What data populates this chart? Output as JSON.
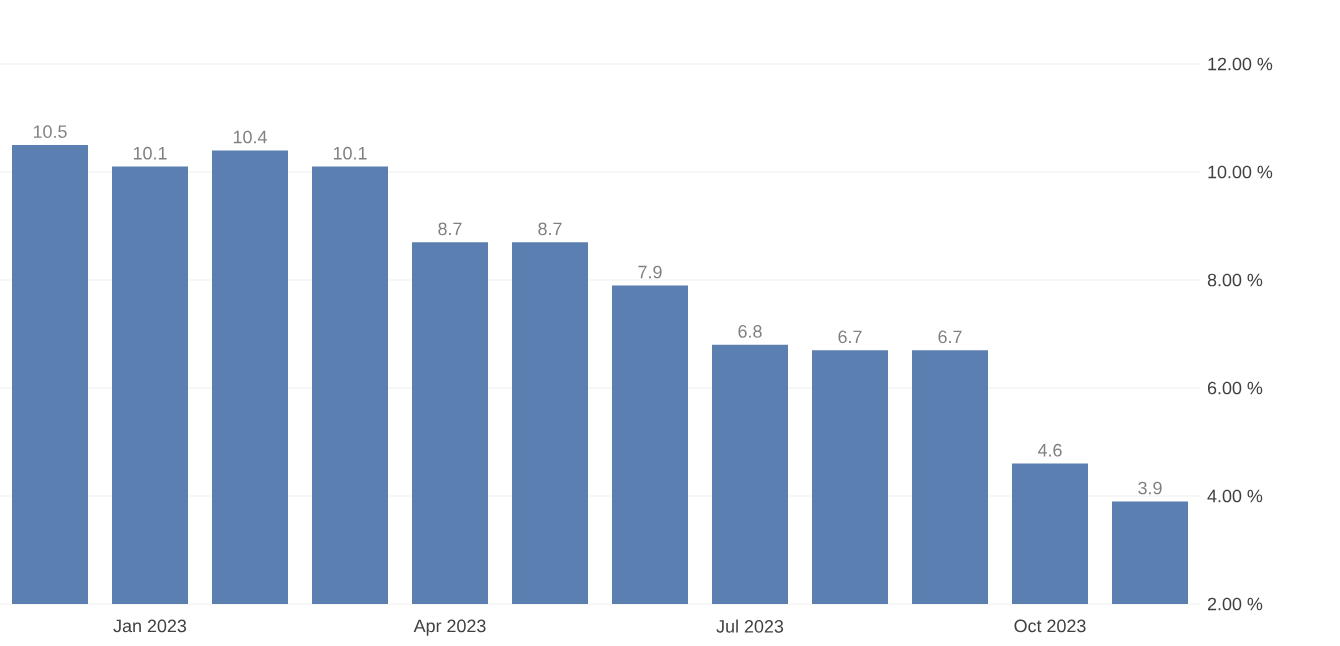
{
  "chart_data": {
    "type": "bar",
    "categories": [
      null,
      "Jan 2023",
      null,
      null,
      "Apr 2023",
      null,
      null,
      "Jul 2023",
      null,
      null,
      "Oct 2023",
      null
    ],
    "values": [
      10.5,
      10.1,
      10.4,
      10.1,
      8.7,
      8.7,
      7.9,
      6.8,
      6.7,
      6.7,
      4.6,
      3.9
    ],
    "color": "#5b7fb0",
    "ylim": [
      2,
      12
    ],
    "yticks": [
      {
        "value": 2,
        "label": "2.00 %"
      },
      {
        "value": 4,
        "label": "4.00 %"
      },
      {
        "value": 6,
        "label": "6.00 %"
      },
      {
        "value": 8,
        "label": "8.00 %"
      },
      {
        "value": 10,
        "label": "10.00 %"
      },
      {
        "value": 12,
        "label": "12.00 %"
      }
    ],
    "grid": "y",
    "data_labels": true
  }
}
